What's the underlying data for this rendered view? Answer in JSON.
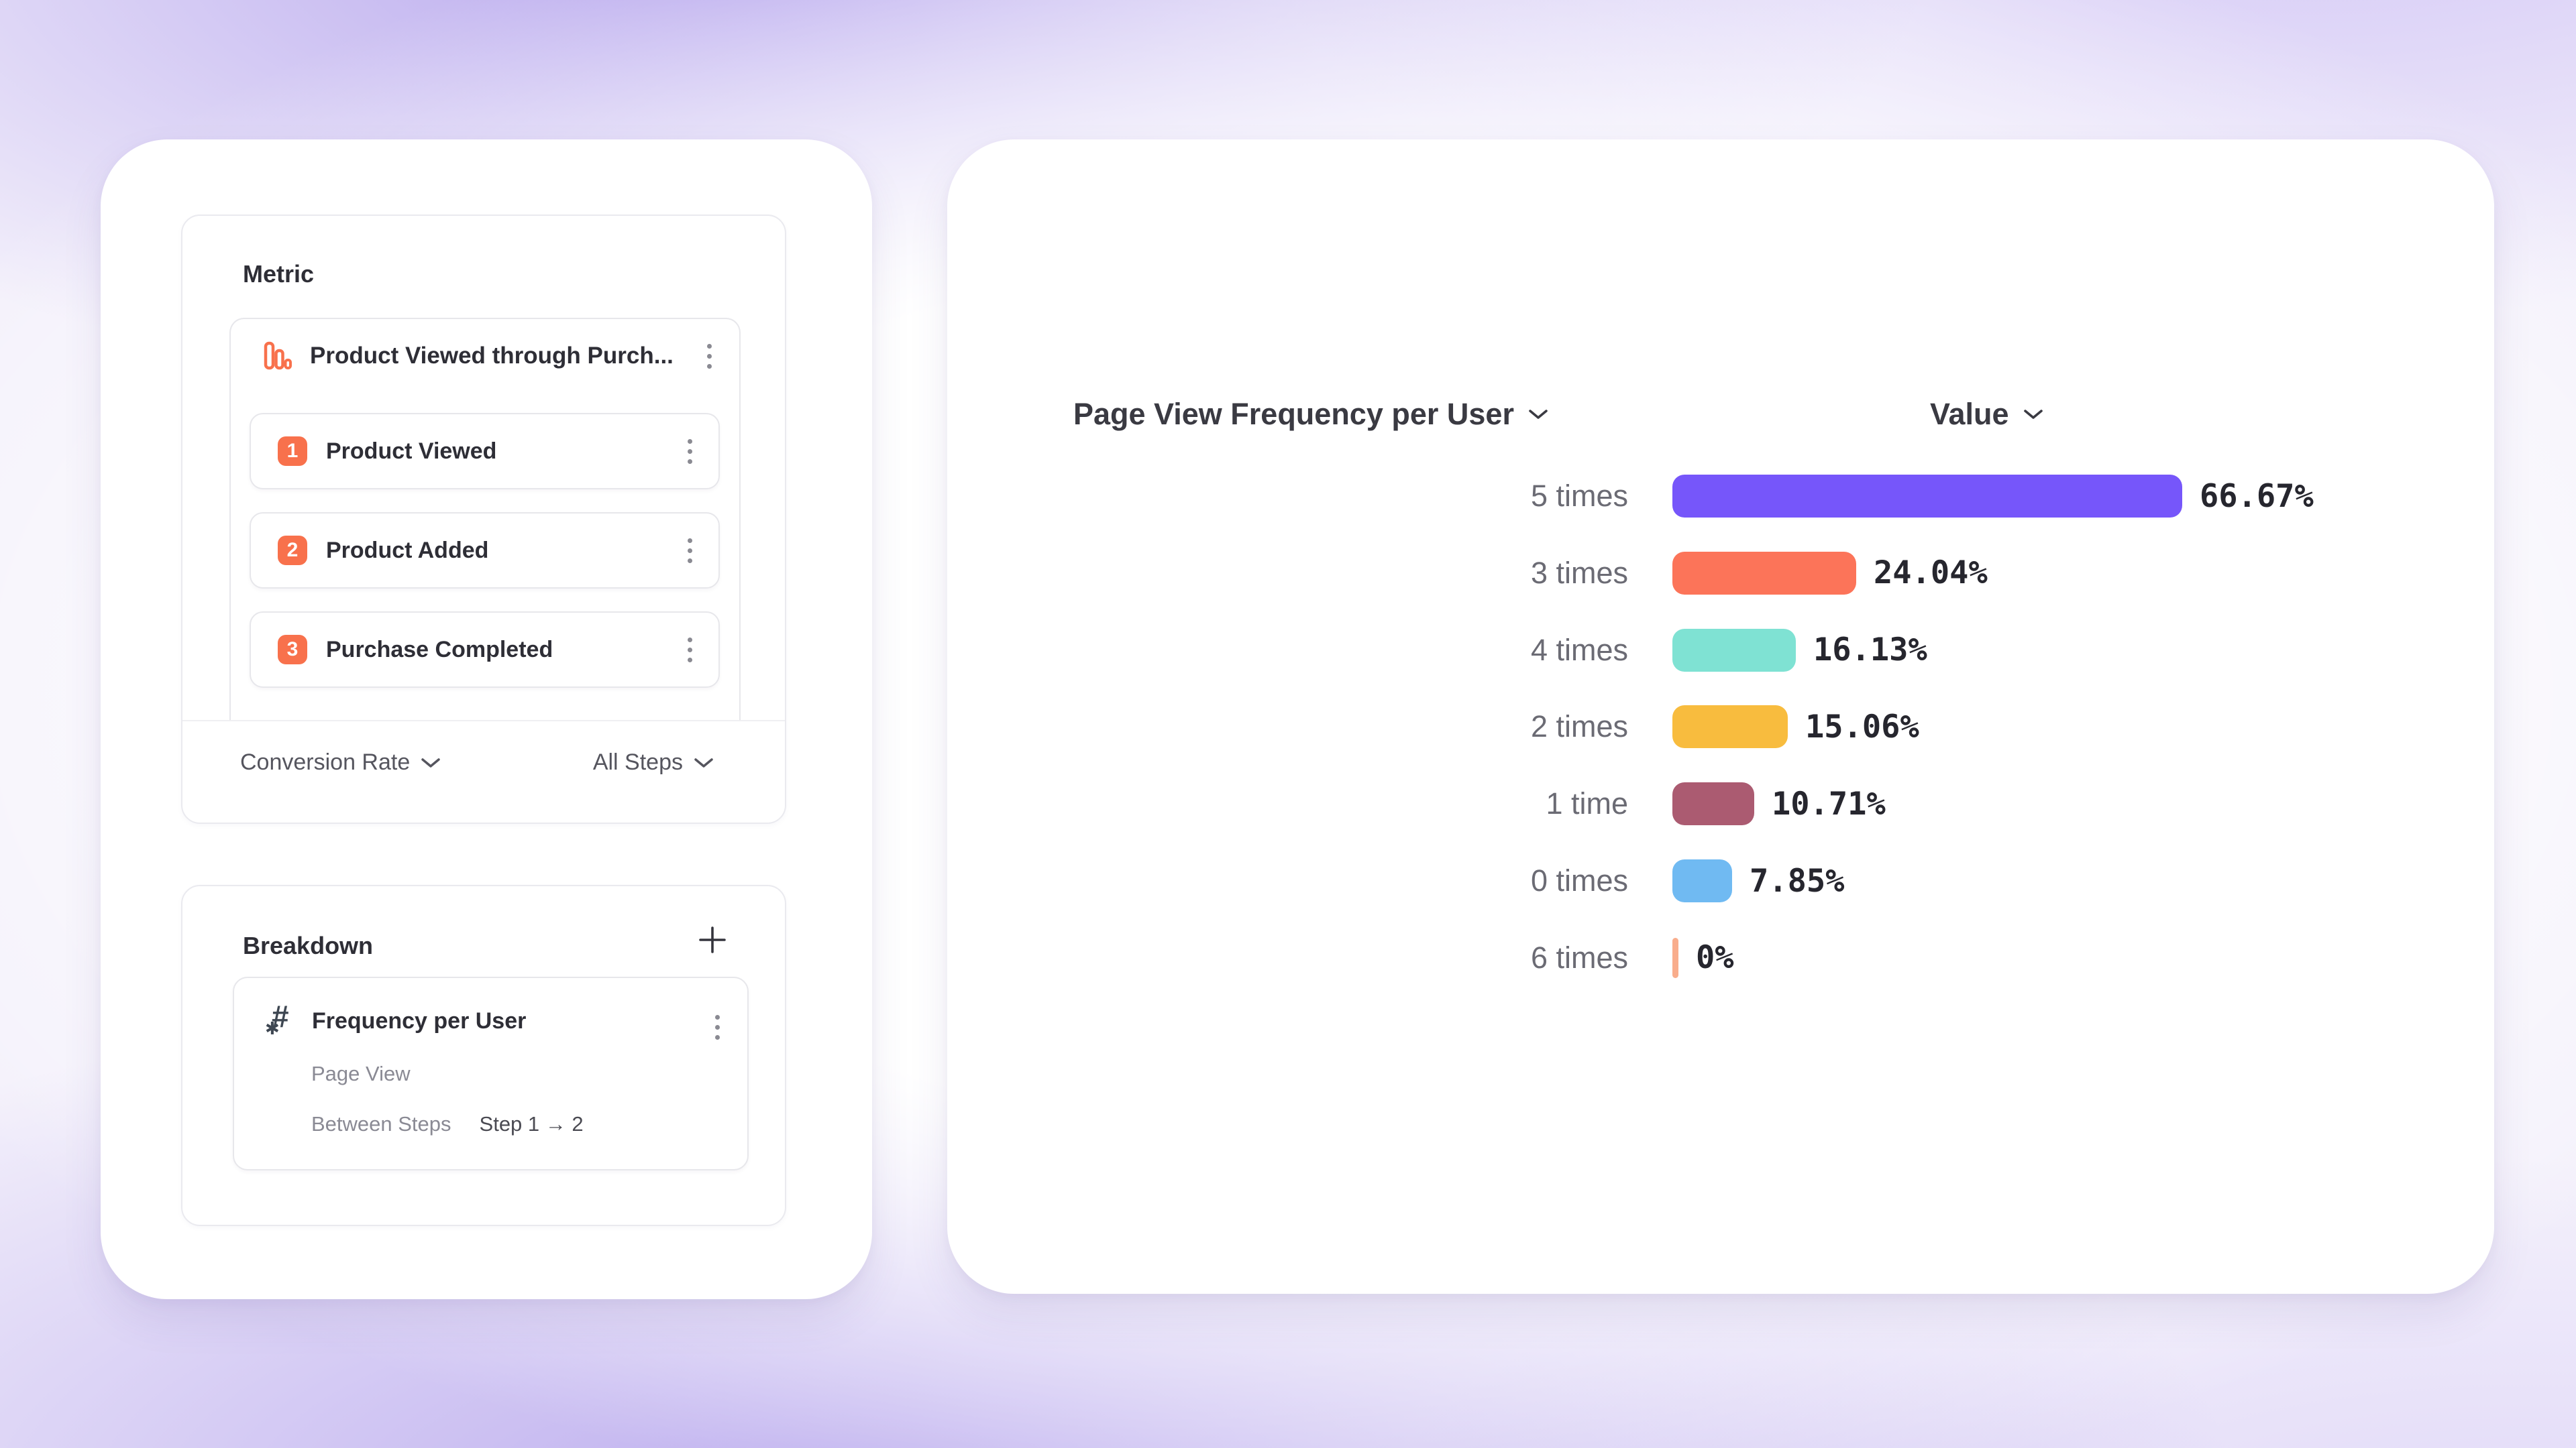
{
  "left_panel": {
    "metric": {
      "title": "Metric",
      "funnel": {
        "title": "Product Viewed through Purch...",
        "icon": "bar-chart-icon",
        "steps": [
          {
            "number": "1",
            "label": "Product Viewed"
          },
          {
            "number": "2",
            "label": "Product Added"
          },
          {
            "number": "3",
            "label": "Purchase Completed"
          }
        ]
      },
      "footer": {
        "measure_label": "Conversion Rate",
        "steps_label": "All Steps"
      }
    },
    "breakdown": {
      "title": "Breakdown",
      "add_icon": "plus-icon",
      "item": {
        "icon": "property-hash-icon",
        "hash_glyph": "#",
        "star_glyph": "✱",
        "title": "Frequency per User",
        "event": "Page View",
        "between_label": "Between Steps",
        "between_value": "Step 1 → 2"
      }
    }
  },
  "chart": {
    "series_select_label": "Page View Frequency per User",
    "value_select_label": "Value"
  },
  "chart_data": {
    "type": "bar",
    "orientation": "horizontal",
    "title": "Page View Frequency per User",
    "value_axis_label": "Value",
    "categories": [
      "5 times",
      "3 times",
      "4 times",
      "2 times",
      "1 time",
      "0 times",
      "6 times"
    ],
    "values": [
      66.67,
      24.04,
      16.13,
      15.06,
      10.71,
      7.85,
      0
    ],
    "value_labels": [
      "66.67%",
      "24.04%",
      "16.13%",
      "15.06%",
      "10.71%",
      "7.85%",
      "0%"
    ],
    "bar_colors": [
      "#7656FA",
      "#FC7459",
      "#7FE2D3",
      "#F8BC3E",
      "#AB5B71",
      "#70BAF2",
      "#F9AD8C"
    ],
    "xlim": [
      0,
      66.67
    ],
    "grid": false,
    "legend": false,
    "units": "percent"
  },
  "colors": {
    "accent_coral": "#F8714C",
    "text_dark": "#2E2E36",
    "text_gray": "#8A8A94",
    "label_gray": "#6B6B74",
    "value_text": "#26262E"
  }
}
